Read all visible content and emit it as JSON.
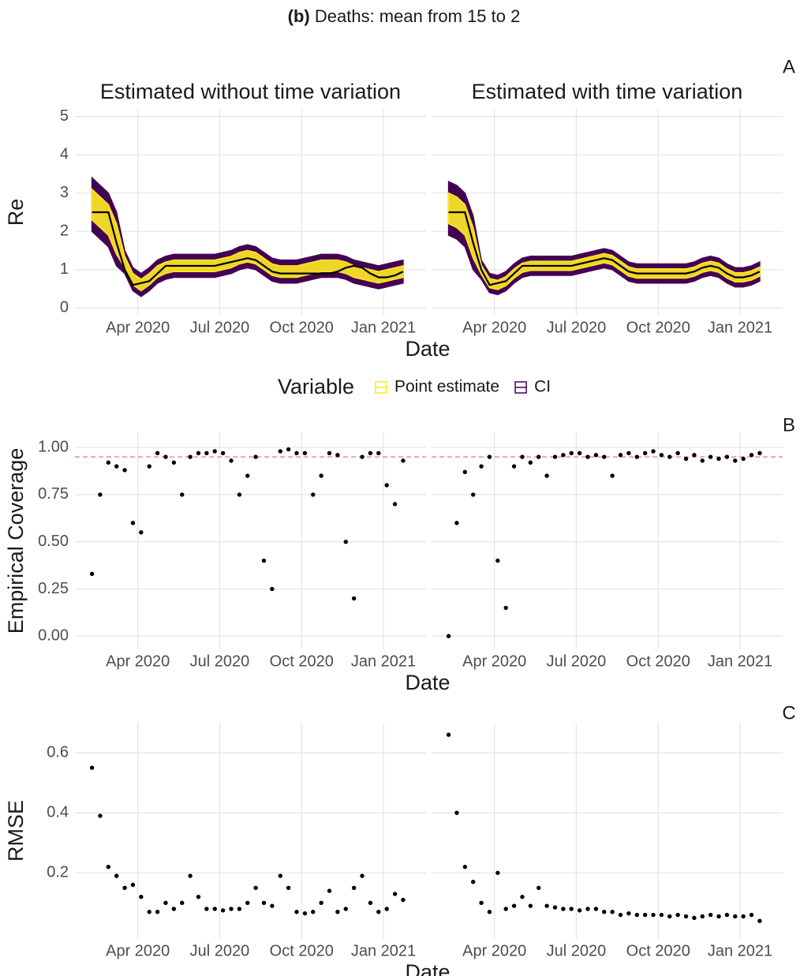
{
  "title_tag": "(b)",
  "title": "Deaths: mean from 15 to 2",
  "chart_data": [
    {
      "type": "band",
      "title": "Estimated without time variation",
      "panel_label": "A",
      "ylabel": "Re",
      "xlabel": "Date",
      "legend_title": "Variable",
      "x": [
        2020.11,
        2020.135,
        2020.16,
        2020.185,
        2020.21,
        2020.235,
        2020.26,
        2020.285,
        2020.31,
        2020.335,
        2020.36,
        2020.385,
        2020.41,
        2020.435,
        2020.46,
        2020.485,
        2020.51,
        2020.535,
        2020.56,
        2020.585,
        2020.61,
        2020.635,
        2020.66,
        2020.685,
        2020.71,
        2020.735,
        2020.76,
        2020.785,
        2020.81,
        2020.835,
        2020.86,
        2020.885,
        2020.91,
        2020.935,
        2020.96,
        2020.985,
        2021.01,
        2021.035,
        2021.06
      ],
      "xlim": [
        2020.058,
        2021.13
      ],
      "xticks": [
        {
          "value": 2020.25,
          "label": "Apr 2020"
        },
        {
          "value": 2020.5,
          "label": "Jul 2020"
        },
        {
          "value": 2020.75,
          "label": "Oct 2020"
        },
        {
          "value": 2021.0,
          "label": "Jan 2021"
        }
      ],
      "ylim": [
        -0.2,
        5.2
      ],
      "yticks": [
        0,
        1,
        2,
        3,
        4,
        5
      ],
      "grid": true,
      "series": [
        {
          "name": "Point estimate",
          "color": "#fde725",
          "lower": [
            2.3,
            2.1,
            1.9,
            1.4,
            1.05,
            0.6,
            0.45,
            0.6,
            0.8,
            0.9,
            0.95,
            0.95,
            0.95,
            0.95,
            0.95,
            0.95,
            1.0,
            1.05,
            1.15,
            1.2,
            1.15,
            1.0,
            0.85,
            0.8,
            0.8,
            0.8,
            0.85,
            0.9,
            0.95,
            0.95,
            0.95,
            0.9,
            0.8,
            0.75,
            0.7,
            0.65,
            0.7,
            0.75,
            0.8
          ],
          "upper": [
            3.1,
            2.9,
            2.7,
            2.2,
            1.35,
            0.9,
            0.75,
            0.9,
            1.1,
            1.2,
            1.25,
            1.25,
            1.25,
            1.25,
            1.25,
            1.25,
            1.3,
            1.35,
            1.45,
            1.5,
            1.45,
            1.3,
            1.15,
            1.1,
            1.1,
            1.1,
            1.15,
            1.2,
            1.25,
            1.25,
            1.25,
            1.2,
            1.1,
            1.05,
            1.0,
            0.95,
            1.0,
            1.05,
            1.1
          ]
        },
        {
          "name": "CI",
          "color": "#440154",
          "lower": [
            2.0,
            1.8,
            1.6,
            1.1,
            0.9,
            0.45,
            0.3,
            0.45,
            0.65,
            0.75,
            0.8,
            0.8,
            0.8,
            0.8,
            0.8,
            0.8,
            0.85,
            0.9,
            1.0,
            1.05,
            1.0,
            0.85,
            0.7,
            0.65,
            0.65,
            0.65,
            0.7,
            0.75,
            0.8,
            0.8,
            0.8,
            0.75,
            0.65,
            0.6,
            0.55,
            0.5,
            0.55,
            0.6,
            0.65
          ],
          "upper": [
            3.4,
            3.2,
            3.0,
            2.5,
            1.5,
            1.05,
            0.9,
            1.05,
            1.25,
            1.35,
            1.4,
            1.4,
            1.4,
            1.4,
            1.4,
            1.4,
            1.45,
            1.5,
            1.6,
            1.65,
            1.6,
            1.45,
            1.3,
            1.25,
            1.25,
            1.25,
            1.3,
            1.35,
            1.4,
            1.4,
            1.4,
            1.35,
            1.25,
            1.2,
            1.15,
            1.1,
            1.15,
            1.2,
            1.25
          ]
        }
      ],
      "line": {
        "color": "#000000",
        "values": [
          2.5,
          2.5,
          2.5,
          1.7,
          1.0,
          0.6,
          0.65,
          0.7,
          0.9,
          1.1,
          1.1,
          1.1,
          1.1,
          1.1,
          1.1,
          1.1,
          1.15,
          1.2,
          1.25,
          1.3,
          1.25,
          1.1,
          0.95,
          0.9,
          0.9,
          0.9,
          0.9,
          0.9,
          0.9,
          0.9,
          0.95,
          1.05,
          1.1,
          1.05,
          0.9,
          0.8,
          0.8,
          0.85,
          0.95
        ]
      }
    },
    {
      "type": "band",
      "title": "Estimated with time variation",
      "x": [
        2020.11,
        2020.135,
        2020.16,
        2020.185,
        2020.21,
        2020.235,
        2020.26,
        2020.285,
        2020.31,
        2020.335,
        2020.36,
        2020.385,
        2020.41,
        2020.435,
        2020.46,
        2020.485,
        2020.51,
        2020.535,
        2020.56,
        2020.585,
        2020.61,
        2020.635,
        2020.66,
        2020.685,
        2020.71,
        2020.735,
        2020.76,
        2020.785,
        2020.81,
        2020.835,
        2020.86,
        2020.885,
        2020.91,
        2020.935,
        2020.96,
        2020.985,
        2021.01,
        2021.035,
        2021.06
      ],
      "xlim": [
        2020.058,
        2021.13
      ],
      "xticks": [
        {
          "value": 2020.25,
          "label": "Apr 2020"
        },
        {
          "value": 2020.5,
          "label": "Jul 2020"
        },
        {
          "value": 2020.75,
          "label": "Oct 2020"
        },
        {
          "value": 2021.0,
          "label": "Jan 2021"
        }
      ],
      "ylim": [
        -0.2,
        5.2
      ],
      "yticks": [
        0,
        1,
        2,
        3,
        4,
        5
      ],
      "grid": true,
      "series": [
        {
          "color": "#fde725",
          "lower": [
            2.2,
            2.1,
            1.9,
            1.3,
            0.88,
            0.53,
            0.48,
            0.58,
            0.78,
            0.93,
            0.98,
            0.98,
            0.98,
            0.98,
            0.98,
            0.98,
            1.03,
            1.08,
            1.13,
            1.18,
            1.13,
            0.98,
            0.83,
            0.78,
            0.78,
            0.78,
            0.78,
            0.78,
            0.78,
            0.78,
            0.83,
            0.93,
            0.98,
            0.93,
            0.78,
            0.68,
            0.68,
            0.73,
            0.83
          ],
          "upper": [
            3.0,
            2.9,
            2.7,
            2.1,
            1.12,
            0.77,
            0.72,
            0.82,
            1.02,
            1.17,
            1.22,
            1.22,
            1.22,
            1.22,
            1.22,
            1.22,
            1.27,
            1.32,
            1.37,
            1.42,
            1.37,
            1.22,
            1.07,
            1.02,
            1.02,
            1.02,
            1.02,
            1.02,
            1.02,
            1.02,
            1.07,
            1.17,
            1.22,
            1.17,
            1.02,
            0.92,
            0.92,
            0.97,
            1.07
          ]
        },
        {
          "color": "#440154",
          "lower": [
            1.9,
            1.8,
            1.6,
            1.0,
            0.75,
            0.4,
            0.35,
            0.45,
            0.65,
            0.8,
            0.85,
            0.85,
            0.85,
            0.85,
            0.85,
            0.85,
            0.9,
            0.95,
            1.0,
            1.05,
            1.0,
            0.85,
            0.7,
            0.65,
            0.65,
            0.65,
            0.65,
            0.65,
            0.65,
            0.65,
            0.7,
            0.8,
            0.85,
            0.8,
            0.65,
            0.55,
            0.55,
            0.6,
            0.7
          ],
          "upper": [
            3.3,
            3.2,
            3.0,
            2.4,
            1.25,
            0.9,
            0.85,
            0.95,
            1.15,
            1.3,
            1.35,
            1.35,
            1.35,
            1.35,
            1.35,
            1.35,
            1.4,
            1.45,
            1.5,
            1.55,
            1.5,
            1.35,
            1.2,
            1.15,
            1.15,
            1.15,
            1.15,
            1.15,
            1.15,
            1.15,
            1.2,
            1.3,
            1.35,
            1.3,
            1.15,
            1.05,
            1.05,
            1.1,
            1.2
          ]
        }
      ],
      "line": {
        "color": "#000000",
        "values": [
          2.5,
          2.5,
          2.5,
          1.7,
          1.0,
          0.6,
          0.65,
          0.7,
          0.9,
          1.1,
          1.1,
          1.1,
          1.1,
          1.1,
          1.1,
          1.1,
          1.15,
          1.2,
          1.25,
          1.3,
          1.25,
          1.1,
          0.95,
          0.9,
          0.9,
          0.9,
          0.9,
          0.9,
          0.9,
          0.9,
          0.95,
          1.05,
          1.1,
          1.05,
          0.9,
          0.8,
          0.8,
          0.85,
          0.95
        ]
      }
    },
    {
      "type": "scatter",
      "panel_label": "B",
      "ylabel": "Empirical Coverage",
      "xlabel": "Date",
      "x": [
        2020.11,
        2020.135,
        2020.16,
        2020.185,
        2020.21,
        2020.235,
        2020.26,
        2020.285,
        2020.31,
        2020.335,
        2020.36,
        2020.385,
        2020.41,
        2020.435,
        2020.46,
        2020.485,
        2020.51,
        2020.535,
        2020.56,
        2020.585,
        2020.61,
        2020.635,
        2020.66,
        2020.685,
        2020.71,
        2020.735,
        2020.76,
        2020.785,
        2020.81,
        2020.835,
        2020.86,
        2020.885,
        2020.91,
        2020.935,
        2020.96,
        2020.985,
        2021.01,
        2021.035,
        2021.06
      ],
      "xlim": [
        2020.058,
        2021.13
      ],
      "xticks": [
        {
          "value": 2020.25,
          "label": "Apr 2020"
        },
        {
          "value": 2020.5,
          "label": "Jul 2020"
        },
        {
          "value": 2020.75,
          "label": "Oct 2020"
        },
        {
          "value": 2021.0,
          "label": "Jan 2021"
        }
      ],
      "ylim": [
        -0.07,
        1.08
      ],
      "yticks": [
        {
          "value": 0,
          "label": "0.00"
        },
        {
          "value": 0.25,
          "label": "0.25"
        },
        {
          "value": 0.5,
          "label": "0.50"
        },
        {
          "value": 0.75,
          "label": "0.75"
        },
        {
          "value": 1,
          "label": "1.00"
        }
      ],
      "grid": true,
      "refline": {
        "value": 0.95,
        "color": "#f08080"
      },
      "series": [
        {
          "color": "#000000",
          "values": [
            0.33,
            0.75,
            0.92,
            0.9,
            0.88,
            0.6,
            0.55,
            0.9,
            0.97,
            0.95,
            0.92,
            0.75,
            0.95,
            0.97,
            0.97,
            0.98,
            0.97,
            0.93,
            0.75,
            0.85,
            0.95,
            0.4,
            0.25,
            0.98,
            0.99,
            0.97,
            0.97,
            0.75,
            0.85,
            0.97,
            0.96,
            0.5,
            0.2,
            0.95,
            0.97,
            0.97,
            0.8,
            0.7,
            0.93
          ]
        }
      ]
    },
    {
      "type": "scatter",
      "x": [
        2020.11,
        2020.135,
        2020.16,
        2020.185,
        2020.21,
        2020.235,
        2020.26,
        2020.285,
        2020.31,
        2020.335,
        2020.36,
        2020.385,
        2020.41,
        2020.435,
        2020.46,
        2020.485,
        2020.51,
        2020.535,
        2020.56,
        2020.585,
        2020.61,
        2020.635,
        2020.66,
        2020.685,
        2020.71,
        2020.735,
        2020.76,
        2020.785,
        2020.81,
        2020.835,
        2020.86,
        2020.885,
        2020.91,
        2020.935,
        2020.96,
        2020.985,
        2021.01,
        2021.035,
        2021.06
      ],
      "xlim": [
        2020.058,
        2021.13
      ],
      "xticks": [
        {
          "value": 2020.25,
          "label": "Apr 2020"
        },
        {
          "value": 2020.5,
          "label": "Jul 2020"
        },
        {
          "value": 2020.75,
          "label": "Oct 2020"
        },
        {
          "value": 2021.0,
          "label": "Jan 2021"
        }
      ],
      "ylim": [
        -0.07,
        1.08
      ],
      "yticks": [
        0,
        0.25,
        0.5,
        0.75,
        1
      ],
      "grid": true,
      "refline": {
        "value": 0.95,
        "color": "#f08080"
      },
      "series": [
        {
          "color": "#000000",
          "values": [
            0.0,
            0.6,
            0.87,
            0.75,
            0.9,
            0.95,
            0.4,
            0.15,
            0.9,
            0.95,
            0.92,
            0.95,
            0.85,
            0.95,
            0.96,
            0.97,
            0.97,
            0.95,
            0.96,
            0.95,
            0.85,
            0.96,
            0.97,
            0.95,
            0.97,
            0.98,
            0.96,
            0.95,
            0.97,
            0.94,
            0.96,
            0.93,
            0.95,
            0.94,
            0.95,
            0.93,
            0.94,
            0.96,
            0.97
          ]
        }
      ]
    },
    {
      "type": "scatter",
      "panel_label": "C",
      "ylabel": "RMSE",
      "xlabel": "Date",
      "x": [
        2020.11,
        2020.135,
        2020.16,
        2020.185,
        2020.21,
        2020.235,
        2020.26,
        2020.285,
        2020.31,
        2020.335,
        2020.36,
        2020.385,
        2020.41,
        2020.435,
        2020.46,
        2020.485,
        2020.51,
        2020.535,
        2020.56,
        2020.585,
        2020.61,
        2020.635,
        2020.66,
        2020.685,
        2020.71,
        2020.735,
        2020.76,
        2020.785,
        2020.81,
        2020.835,
        2020.86,
        2020.885,
        2020.91,
        2020.935,
        2020.96,
        2020.985,
        2021.01,
        2021.035,
        2021.06
      ],
      "xlim": [
        2020.058,
        2021.13
      ],
      "xticks": [
        {
          "value": 2020.25,
          "label": "Apr 2020"
        },
        {
          "value": 2020.5,
          "label": "Jul 2020"
        },
        {
          "value": 2020.75,
          "label": "Oct 2020"
        },
        {
          "value": 2021.0,
          "label": "Jan 2021"
        }
      ],
      "ylim": [
        -0.02,
        0.7
      ],
      "yticks": [
        0.2,
        0.4,
        0.6
      ],
      "grid": true,
      "series": [
        {
          "color": "#000000",
          "values": [
            0.55,
            0.39,
            0.22,
            0.19,
            0.15,
            0.16,
            0.12,
            0.07,
            0.07,
            0.1,
            0.08,
            0.1,
            0.19,
            0.12,
            0.08,
            0.08,
            0.075,
            0.08,
            0.08,
            0.1,
            0.15,
            0.1,
            0.09,
            0.19,
            0.15,
            0.07,
            0.065,
            0.07,
            0.1,
            0.14,
            0.07,
            0.08,
            0.15,
            0.19,
            0.1,
            0.07,
            0.08,
            0.13,
            0.11
          ]
        }
      ]
    },
    {
      "type": "scatter",
      "x": [
        2020.11,
        2020.135,
        2020.16,
        2020.185,
        2020.21,
        2020.235,
        2020.26,
        2020.285,
        2020.31,
        2020.335,
        2020.36,
        2020.385,
        2020.41,
        2020.435,
        2020.46,
        2020.485,
        2020.51,
        2020.535,
        2020.56,
        2020.585,
        2020.61,
        2020.635,
        2020.66,
        2020.685,
        2020.71,
        2020.735,
        2020.76,
        2020.785,
        2020.81,
        2020.835,
        2020.86,
        2020.885,
        2020.91,
        2020.935,
        2020.96,
        2020.985,
        2021.01,
        2021.035,
        2021.06
      ],
      "xlim": [
        2020.058,
        2021.13
      ],
      "xticks": [
        {
          "value": 2020.25,
          "label": "Apr 2020"
        },
        {
          "value": 2020.5,
          "label": "Jul 2020"
        },
        {
          "value": 2020.75,
          "label": "Oct 2020"
        },
        {
          "value": 2021.0,
          "label": "Jan 2021"
        }
      ],
      "ylim": [
        -0.02,
        0.7
      ],
      "yticks": [
        0.2,
        0.4,
        0.6
      ],
      "grid": true,
      "series": [
        {
          "color": "#000000",
          "values": [
            0.66,
            0.4,
            0.22,
            0.17,
            0.1,
            0.07,
            0.2,
            0.08,
            0.09,
            0.12,
            0.09,
            0.15,
            0.09,
            0.085,
            0.08,
            0.08,
            0.075,
            0.08,
            0.08,
            0.07,
            0.07,
            0.06,
            0.065,
            0.06,
            0.06,
            0.06,
            0.06,
            0.055,
            0.06,
            0.055,
            0.05,
            0.055,
            0.06,
            0.055,
            0.06,
            0.055,
            0.055,
            0.06,
            0.04
          ]
        }
      ]
    }
  ]
}
